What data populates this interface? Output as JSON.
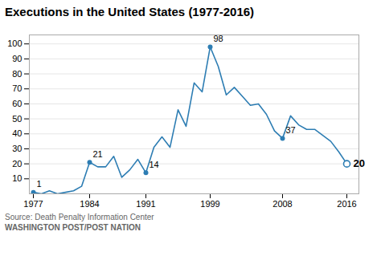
{
  "chart_data": {
    "type": "line",
    "title": "Executions in the United States (1977-2016)",
    "source": "Source: Death Penalty Information Center",
    "footer": "WASHINGTON POST/POST NATION",
    "color": "#2d7db3",
    "x": [
      1977,
      1978,
      1979,
      1980,
      1981,
      1982,
      1983,
      1984,
      1985,
      1986,
      1987,
      1988,
      1989,
      1990,
      1991,
      1992,
      1993,
      1994,
      1995,
      1996,
      1997,
      1998,
      1999,
      2000,
      2001,
      2002,
      2003,
      2004,
      2005,
      2006,
      2007,
      2008,
      2009,
      2010,
      2011,
      2012,
      2013,
      2014,
      2015,
      2016
    ],
    "values": [
      1,
      0,
      2,
      0,
      1,
      2,
      5,
      21,
      18,
      18,
      25,
      11,
      16,
      23,
      14,
      31,
      38,
      31,
      56,
      45,
      74,
      68,
      98,
      85,
      66,
      71,
      65,
      59,
      60,
      53,
      42,
      37,
      52,
      46,
      43,
      43,
      39,
      35,
      28,
      20
    ],
    "annotations": [
      {
        "x": 1977,
        "y": 1,
        "label": "1"
      },
      {
        "x": 1984,
        "y": 21,
        "label": "21"
      },
      {
        "x": 1991,
        "y": 14,
        "label": "14"
      },
      {
        "x": 1999,
        "y": 98,
        "label": "98"
      },
      {
        "x": 2008,
        "y": 37,
        "label": "37"
      },
      {
        "x": 2016,
        "y": 20,
        "label": "20"
      }
    ],
    "xlim": [
      1976.5,
      2017.5
    ],
    "xticks": [
      1977,
      1984,
      1991,
      1999,
      2008,
      2016
    ],
    "ylim": [
      0,
      106
    ],
    "yticks": [
      10,
      20,
      30,
      40,
      50,
      60,
      70,
      80,
      90,
      100
    ],
    "grid": true
  }
}
